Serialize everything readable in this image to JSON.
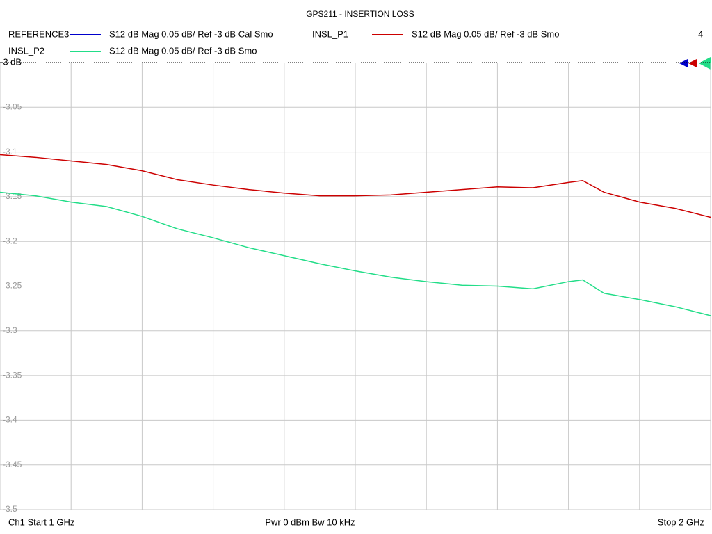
{
  "chart_data": {
    "type": "line",
    "title": "GPS211 - INSERTION LOSS",
    "annotation": "4",
    "footer": [
      "Ch1  Start  1 GHz",
      "Pwr  0 dBm  Bw  10 kHz",
      "Stop  2 GHz"
    ],
    "x": [
      1,
      1.05,
      1.1,
      1.15,
      1.2,
      1.25,
      1.3,
      1.35,
      1.4,
      1.45,
      1.5,
      1.55,
      1.6,
      1.65,
      1.7,
      1.75,
      1.8,
      1.82,
      1.85,
      1.9,
      1.95,
      2
    ],
    "xlim": [
      1,
      2
    ],
    "xticks": [
      1,
      1.1,
      1.2,
      1.3,
      1.4,
      1.5,
      1.6,
      1.7,
      1.8,
      1.9,
      2
    ],
    "ylim": [
      -3.5,
      -3
    ],
    "yticks": [
      {
        "value": -3,
        "label": "-3 dB"
      },
      -3.05,
      -3.1,
      -3.15,
      -3.2,
      -3.25,
      -3.3,
      -3.35,
      -3.4,
      -3.45,
      -3.5
    ],
    "grid": true,
    "series": [
      {
        "name": "REFERENCE3",
        "description": "S12  dB Mag  0.05 dB/ Ref -3 dB  Cal Smo",
        "color": "#0000cc",
        "values": [
          null,
          null,
          null,
          null,
          null,
          null,
          null,
          null,
          null,
          null,
          null,
          null,
          null,
          null,
          null,
          null,
          null,
          null,
          null,
          null,
          null,
          null
        ]
      },
      {
        "name": "INSL_P1",
        "description": "S12  dB Mag  0.05 dB/ Ref -3 dB  Smo",
        "color": "#cc0000",
        "values": [
          -3.103,
          -3.106,
          -3.11,
          -3.114,
          -3.121,
          -3.131,
          -3.137,
          -3.142,
          -3.146,
          -3.149,
          -3.149,
          -3.148,
          -3.145,
          -3.142,
          -3.139,
          -3.14,
          -3.134,
          -3.132,
          -3.145,
          -3.156,
          -3.163,
          -3.173
        ]
      },
      {
        "name": "INSL_P2",
        "description": "S12  dB Mag  0.05 dB/ Ref -3 dB  Smo",
        "color": "#22dd88",
        "values": [
          -3.145,
          -3.149,
          -3.156,
          -3.161,
          -3.172,
          -3.186,
          -3.196,
          -3.207,
          -3.216,
          -3.225,
          -3.233,
          -3.24,
          -3.245,
          -3.249,
          -3.25,
          -3.253,
          -3.245,
          -3.243,
          -3.258,
          -3.265,
          -3.273,
          -3.283
        ]
      }
    ]
  }
}
